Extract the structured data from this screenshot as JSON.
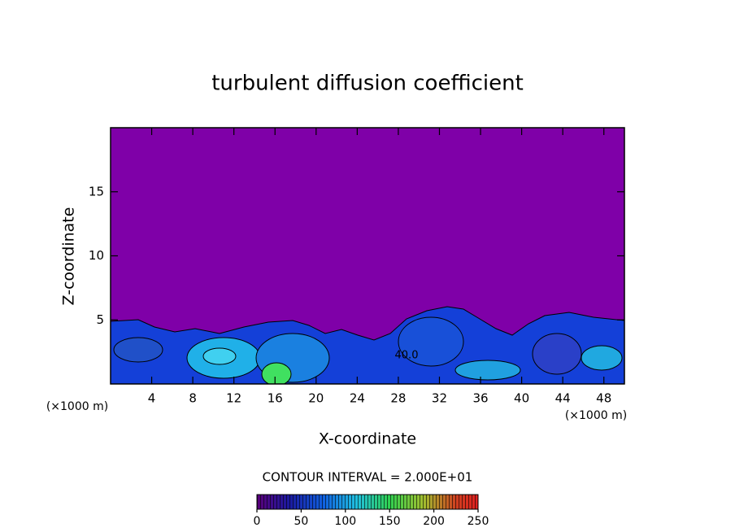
{
  "chart_data": {
    "type": "contour",
    "title": "turbulent diffusion coefficient",
    "xlabel": "X-coordinate",
    "ylabel": "Z-coordinate",
    "xunit": "(×1000 m)",
    "yunit": "(×1000 m)",
    "xlim": [
      0,
      50
    ],
    "xticks": [
      4,
      8,
      12,
      16,
      20,
      24,
      28,
      32,
      36,
      40,
      44,
      48
    ],
    "ylim": [
      0,
      20
    ],
    "yticks": [
      5,
      10,
      15
    ],
    "annotations": [
      "40.0"
    ],
    "colorbar": {
      "label": "CONTOUR INTERVAL = 2.000E+01",
      "lim": [
        0,
        250
      ],
      "ticks": [
        0,
        50,
        100,
        150,
        200,
        250
      ]
    }
  }
}
